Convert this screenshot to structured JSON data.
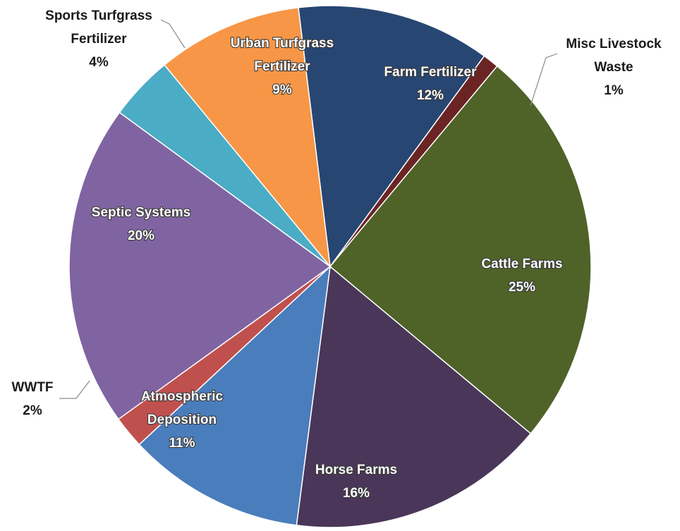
{
  "chart_data": {
    "type": "pie",
    "title": "",
    "start_angle_deg": -7,
    "direction": "clockwise",
    "series": [
      {
        "name": "Farm Fertilizer",
        "value": 12,
        "percent_label": "12%",
        "color": "#274672",
        "label_lines": [
          "Farm Fertilizer"
        ],
        "label_style": "inside"
      },
      {
        "name": "Misc Livestock Waste",
        "value": 1,
        "percent_label": "1%",
        "color": "#6b2424",
        "label_lines": [
          "Misc Livestock",
          "Waste"
        ],
        "label_style": "outside"
      },
      {
        "name": "Cattle Farms",
        "value": 25,
        "percent_label": "25%",
        "color": "#4f6228",
        "label_lines": [
          "Cattle Farms"
        ],
        "label_style": "inside"
      },
      {
        "name": "Horse Farms",
        "value": 16,
        "percent_label": "16%",
        "color": "#4a3659",
        "label_lines": [
          "Horse Farms"
        ],
        "label_style": "inside"
      },
      {
        "name": "Atmospheric Deposition",
        "value": 11,
        "percent_label": "11%",
        "color": "#4a7dbc",
        "label_lines": [
          "Atmospheric",
          "Deposition"
        ],
        "label_style": "inside"
      },
      {
        "name": "WWTF",
        "value": 2,
        "percent_label": "2%",
        "color": "#c0504d",
        "label_lines": [
          "WWTF"
        ],
        "label_style": "outside"
      },
      {
        "name": "Septic Systems",
        "value": 20,
        "percent_label": "20%",
        "color": "#8064a2",
        "label_lines": [
          "Septic Systems"
        ],
        "label_style": "inside"
      },
      {
        "name": "Sports Turfgrass Fertilizer",
        "value": 4,
        "percent_label": "4%",
        "color": "#4bacc6",
        "label_lines": [
          "Sports Turfgrass",
          "Fertilizer"
        ],
        "label_style": "outside"
      },
      {
        "name": "Urban Turfgrass Fertilizer",
        "value": 9,
        "percent_label": "9%",
        "color": "#f79646",
        "label_lines": [
          "Urban Turfgrass",
          "Fertilizer"
        ],
        "label_style": "inside"
      }
    ]
  }
}
